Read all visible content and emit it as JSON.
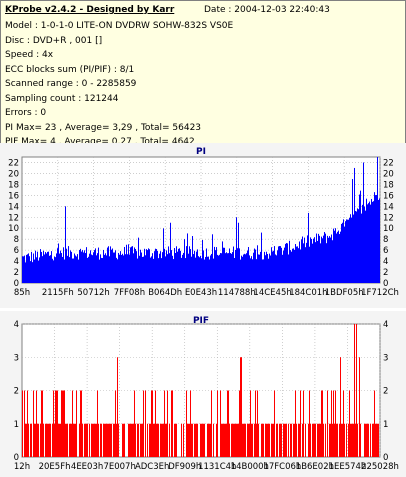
{
  "info": {
    "title": "KProbe v2.4.2 - Designed by Karr",
    "date": "Date : 2004-12-03 22:40:43",
    "lines": [
      "Model : 1-0-1-0 LITE-ON DVDRW SOHW-832S  VS0E",
      "Disc : DVD+R , 001 []",
      "Speed : 4x",
      "ECC blocks sum (PI/PIF) : 8/1",
      "Scanned range : 0 - 2285859",
      "Sampling count : 121244",
      "Errors : 0",
      "PI Max= 23 , Average= 3,29 , Total= 56423",
      "PIF Max= 4 , Average= 0,27 , Total= 4642"
    ]
  },
  "chart_data": [
    {
      "type": "bar",
      "title": "PI",
      "color": "#0000ff",
      "ylim": [
        0,
        23
      ],
      "yticks": [
        0,
        2,
        4,
        6,
        8,
        10,
        12,
        14,
        16,
        18,
        20,
        22
      ],
      "xticks": [
        "85h",
        "2115Fh",
        "50712h",
        "7FF08h",
        "B064Dh",
        "E0E43h",
        "114788h",
        "14CE45h",
        "184C01h",
        "1BDF05h",
        "1F712Ch"
      ],
      "grid": true,
      "profile": [
        {
          "x": 0.0,
          "base": 4,
          "max": 8
        },
        {
          "x": 0.1,
          "base": 5,
          "max": 9
        },
        {
          "x": 0.2,
          "base": 5,
          "max": 9
        },
        {
          "x": 0.3,
          "base": 5,
          "max": 10
        },
        {
          "x": 0.4,
          "base": 5,
          "max": 10
        },
        {
          "x": 0.5,
          "base": 5,
          "max": 9
        },
        {
          "x": 0.6,
          "base": 5,
          "max": 10
        },
        {
          "x": 0.7,
          "base": 5,
          "max": 10
        },
        {
          "x": 0.8,
          "base": 7,
          "max": 13
        },
        {
          "x": 0.86,
          "base": 8,
          "max": 15
        },
        {
          "x": 0.92,
          "base": 11,
          "max": 19
        },
        {
          "x": 1.0,
          "base": 16,
          "max": 23
        }
      ],
      "peaks": [
        {
          "x": 0.12,
          "value": 14
        },
        {
          "x": 0.415,
          "value": 11
        },
        {
          "x": 0.6,
          "value": 12
        },
        {
          "x": 0.605,
          "value": 11
        },
        {
          "x": 0.93,
          "value": 21
        },
        {
          "x": 0.955,
          "value": 22
        },
        {
          "x": 0.995,
          "value": 23
        }
      ]
    },
    {
      "type": "bar",
      "title": "PIF",
      "color": "#ff0000",
      "ylim": [
        0,
        4
      ],
      "yticks": [
        0,
        1,
        2,
        3,
        4
      ],
      "xticks": [
        "12h",
        "20E5Fh",
        "4EE03h",
        "7E007h",
        "ADC3Eh",
        "DF909h",
        "1131C4h",
        "14B000h",
        "17FC06h",
        "1B6E02h",
        "1EE574h",
        "225028h"
      ],
      "grid": true,
      "ones_density": 0.75,
      "twos_density": 0.28,
      "threes": [
        0.265,
        0.61,
        0.612,
        0.89,
        0.945
      ],
      "fours": [
        0.93,
        0.935
      ]
    }
  ]
}
